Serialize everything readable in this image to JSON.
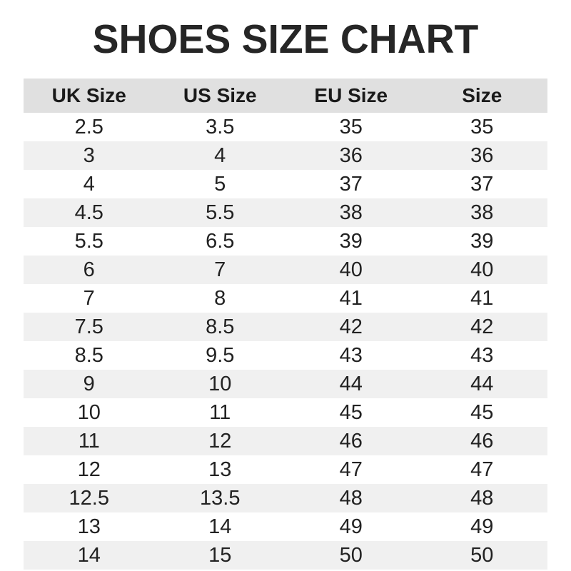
{
  "page": {
    "title": "SHOES SIZE CHART"
  },
  "colors": {
    "page_bg": "#ffffff",
    "title_text": "#262626",
    "header_bg": "#e0e0e0",
    "stripe_bg": "#f0f0f0",
    "cell_text": "#222222"
  },
  "chart_data": {
    "type": "table",
    "title": "SHOES SIZE CHART",
    "columns": [
      "UK Size",
      "US Size",
      "EU Size",
      "Size"
    ],
    "rows": [
      [
        "2.5",
        "3.5",
        "35",
        "35"
      ],
      [
        "3",
        "4",
        "36",
        "36"
      ],
      [
        "4",
        "5",
        "37",
        "37"
      ],
      [
        "4.5",
        "5.5",
        "38",
        "38"
      ],
      [
        "5.5",
        "6.5",
        "39",
        "39"
      ],
      [
        "6",
        "7",
        "40",
        "40"
      ],
      [
        "7",
        "8",
        "41",
        "41"
      ],
      [
        "7.5",
        "8.5",
        "42",
        "42"
      ],
      [
        "8.5",
        "9.5",
        "43",
        "43"
      ],
      [
        "9",
        "10",
        "44",
        "44"
      ],
      [
        "10",
        "11",
        "45",
        "45"
      ],
      [
        "11",
        "12",
        "46",
        "46"
      ],
      [
        "12",
        "13",
        "47",
        "47"
      ],
      [
        "12.5",
        "13.5",
        "48",
        "48"
      ],
      [
        "13",
        "14",
        "49",
        "49"
      ],
      [
        "14",
        "15",
        "50",
        "50"
      ]
    ],
    "layout": {
      "striped": true,
      "first_data_row_background": "white",
      "alternate_row_background": "light-grey",
      "header_background": "grey",
      "text_align": "center",
      "columns_equal_width": true
    }
  }
}
